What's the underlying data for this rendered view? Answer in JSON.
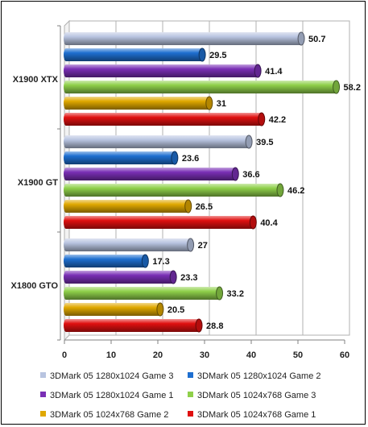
{
  "chart_data": {
    "type": "bar",
    "orientation": "horizontal",
    "categories": [
      "X1900 XTX",
      "X1900 GT",
      "X1800 GTO"
    ],
    "series": [
      {
        "name": "3DMark 05 1280x1024 Game 3",
        "color": "#b8c4e0",
        "values": [
          50.7,
          39.5,
          27
        ]
      },
      {
        "name": "3DMark 05 1280x1024 Game 2",
        "color": "#1e6fd0",
        "values": [
          29.5,
          23.6,
          17.3
        ]
      },
      {
        "name": "3DMark 05 1280x1024 Game 1",
        "color": "#7a2fb5",
        "values": [
          41.4,
          36.6,
          23.3
        ]
      },
      {
        "name": "3DMark 05 1024x768 Game 3",
        "color": "#8fd04a",
        "values": [
          58.2,
          46.2,
          33.2
        ]
      },
      {
        "name": "3DMark 05 1024x768 Game 2",
        "color": "#e0a800",
        "values": [
          31,
          26.5,
          20.5
        ]
      },
      {
        "name": "3DMark 05 1024x768 Game 1",
        "color": "#e01010",
        "values": [
          42.2,
          40.4,
          28.8
        ]
      }
    ],
    "value_labels": [
      [
        "50.7",
        "29.5",
        "41.4",
        "58.2",
        "31",
        "42.2"
      ],
      [
        "39.5",
        "23.6",
        "36.6",
        "46.2",
        "26.5",
        "40.4"
      ],
      [
        "27",
        "17.3",
        "23.3",
        "33.2",
        "20.5",
        "28.8"
      ]
    ],
    "xlim": [
      0,
      60
    ],
    "xticks": [
      "0",
      "10",
      "20",
      "30",
      "40",
      "50",
      "60"
    ],
    "grid": true,
    "legend_position": "bottom"
  }
}
